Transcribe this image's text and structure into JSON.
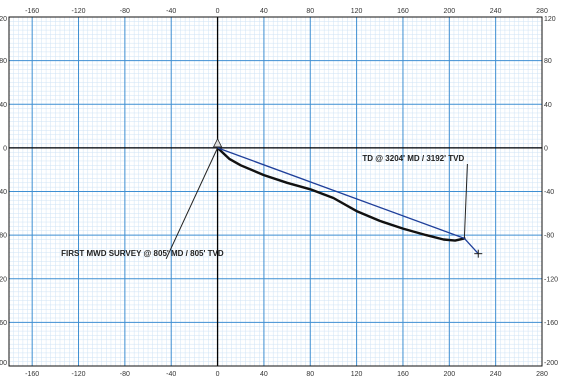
{
  "chart_data": {
    "type": "line",
    "title": "",
    "xlabel": "",
    "ylabel": "",
    "xlim": [
      -180,
      280
    ],
    "ylim": [
      -200,
      120
    ],
    "x_ticks": [
      -160,
      -120,
      -80,
      -40,
      0,
      40,
      80,
      120,
      160,
      200,
      240,
      280
    ],
    "y_ticks": [
      120,
      80,
      40,
      0,
      -40,
      -80,
      -120,
      -160,
      -200
    ],
    "grid": true,
    "series": [
      {
        "color": "#111111",
        "points": [
          [
            0,
            0
          ],
          [
            10,
            -10
          ],
          [
            20,
            -16
          ],
          [
            40,
            -25
          ],
          [
            60,
            -32
          ],
          [
            80,
            -38
          ],
          [
            100,
            -46
          ],
          [
            120,
            -58
          ],
          [
            140,
            -67
          ],
          [
            160,
            -74
          ],
          [
            180,
            -80
          ],
          [
            195,
            -84
          ],
          [
            205,
            -85
          ],
          [
            213,
            -83
          ]
        ]
      },
      {
        "color": "#1f3f9a",
        "points": [
          [
            0,
            0
          ],
          [
            213,
            -83
          ]
        ]
      },
      {
        "color": "#1f3f9a",
        "points": [
          [
            213,
            -83
          ],
          [
            225,
            -97
          ]
        ]
      }
    ],
    "annotations": [
      {
        "text": "TD @ 3204' MD / 3192' TVD",
        "label_at": [
          125,
          -12
        ],
        "arrow_to": [
          213,
          -83
        ]
      },
      {
        "text": "FIRST MWD SURVEY @ 805' MD / 805' TVD",
        "label_at": [
          -135,
          -99
        ],
        "arrow_to": [
          0,
          0
        ]
      }
    ]
  }
}
